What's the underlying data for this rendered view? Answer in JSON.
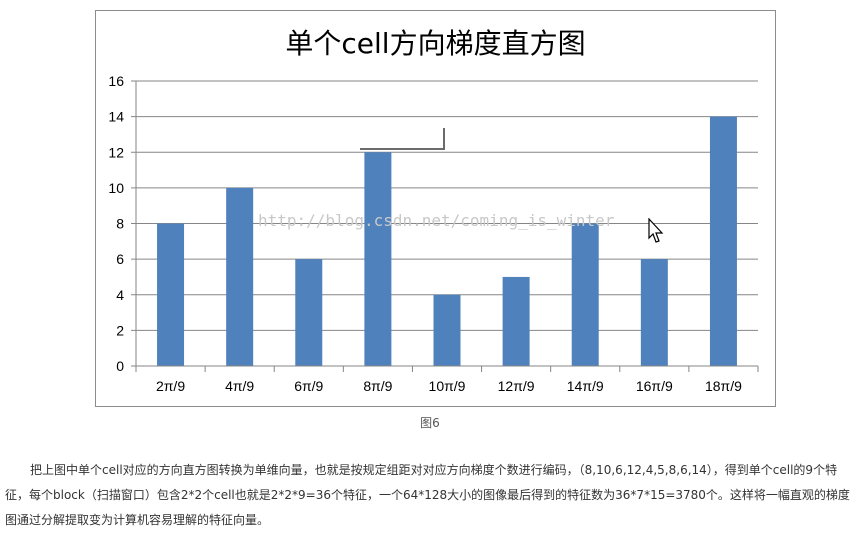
{
  "chart_data": {
    "type": "bar",
    "title": "单个cell方向梯度直方图",
    "categories": [
      "2π/9",
      "4π/9",
      "6π/9",
      "8π/9",
      "10π/9",
      "12π/9",
      "14π/9",
      "16π/9",
      "18π/9"
    ],
    "values": [
      8,
      10,
      6,
      12,
      4,
      5,
      8,
      6,
      14
    ],
    "ylim": [
      0,
      16
    ],
    "yticks": [
      0,
      2,
      4,
      6,
      8,
      10,
      12,
      14,
      16
    ],
    "grid": true,
    "bar_color": "#4f81bd",
    "grid_color": "#868686"
  },
  "watermark": "http://blog.csdn.net/coming_is_winter",
  "caption": "图6",
  "paragraph": "把上图中单个cell对应的方向直方图转换为单维向量，也就是按规定组距对对应方向梯度个数进行编码，（8,10,6,12,4,5,8,6,14），得到单个cell的9个特征，每个block（扫描窗口）包含2*2个cell也就是2*2*9=36个特征，一个64*128大小的图像最后得到的特征数为36*7*15=3780个。这样将一幅直观的梯度图通过分解提取变为计算机容易理解的特征向量。"
}
